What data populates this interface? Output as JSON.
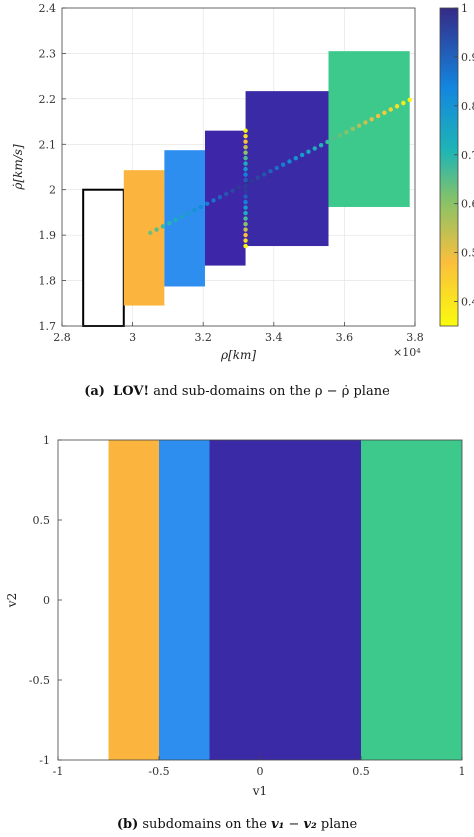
{
  "chart_data": [
    {
      "type": "scatter",
      "panel_label": "(a)",
      "caption_bold": "LOV!",
      "caption_rest": " and sub-domains on the ρ − ρ̇ plane",
      "xlabel": "ρ[km]",
      "ylabel": "ρ̇[km/s]",
      "x_multiplier": "×10⁴",
      "xlim": [
        2.8,
        3.8
      ],
      "ylim": [
        1.7,
        2.4
      ],
      "xticks": [
        "2.8",
        "3",
        "3.2",
        "3.4",
        "3.6",
        "3.8"
      ],
      "yticks": [
        "1.7",
        "1.8",
        "1.9",
        "2",
        "2.1",
        "2.2",
        "2.3",
        "2.4"
      ],
      "grid": true,
      "colorbar": {
        "range": [
          0.35,
          1.0
        ],
        "ticks": [
          "1",
          "0.9",
          "0.8",
          "0.7",
          "0.6",
          "0.5",
          "0.4"
        ],
        "tick_values": [
          1.0,
          0.9,
          0.8,
          0.7,
          0.6,
          0.5,
          0.4
        ]
      },
      "subdomains": [
        {
          "x": [
            2.86,
            2.975
          ],
          "y": [
            1.7,
            2.0
          ],
          "color": "#ffffff",
          "outline": true
        },
        {
          "x": [
            2.975,
            3.09
          ],
          "y": [
            1.745,
            2.043
          ],
          "color": "#fbb43e"
        },
        {
          "x": [
            3.09,
            3.205
          ],
          "y": [
            1.787,
            2.087
          ],
          "color": "#2e8ef0"
        },
        {
          "x": [
            3.205,
            3.32
          ],
          "y": [
            1.833,
            2.13
          ],
          "color": "#3d26a8"
        },
        {
          "x": [
            3.32,
            3.555
          ],
          "y": [
            1.876,
            2.217
          ],
          "color": "#3a2aa5"
        },
        {
          "x": [
            3.555,
            3.785
          ],
          "y": [
            1.962,
            2.305
          ],
          "color": "#3dc98c"
        }
      ],
      "line_points": {
        "x_start": 3.05,
        "x_end": 3.785,
        "y_start": 1.905,
        "y_end": 2.198,
        "value_start": 0.36,
        "value_end": 0.36,
        "value_mid": 1.0,
        "x_mid": 3.32,
        "count": 42
      },
      "vertical_points": {
        "x": 3.32,
        "y_start": 1.876,
        "y_end": 2.13,
        "value_center": 1.0,
        "value_edge": 0.36,
        "count": 22
      }
    },
    {
      "type": "bar",
      "panel_label": "(b)",
      "caption_rest": " subdomains on the v₁ − v₂ plane",
      "caption_v1": "v₁",
      "caption_minus": " − ",
      "caption_v2": "v₂",
      "caption_suffix": " plane",
      "caption_prefix": " subdomains on the ",
      "xlabel": "v1",
      "ylabel": "v2",
      "xlim": [
        -1,
        1
      ],
      "ylim": [
        -1,
        1
      ],
      "xticks": [
        "-1",
        "-0.5",
        "0",
        "0.5",
        "1"
      ],
      "yticks": [
        "-1",
        "-0.5",
        "0",
        "0.5",
        "1"
      ],
      "bands": [
        {
          "x": [
            -1.0,
            -0.75
          ],
          "color": "#ffffff"
        },
        {
          "x": [
            -0.75,
            -0.5
          ],
          "color": "#fbb43e"
        },
        {
          "x": [
            -0.5,
            -0.25
          ],
          "color": "#2e8ef0"
        },
        {
          "x": [
            -0.25,
            0.5
          ],
          "color": "#3a2aa5"
        },
        {
          "x": [
            0.5,
            1.0
          ],
          "color": "#3dc98c"
        }
      ]
    }
  ]
}
